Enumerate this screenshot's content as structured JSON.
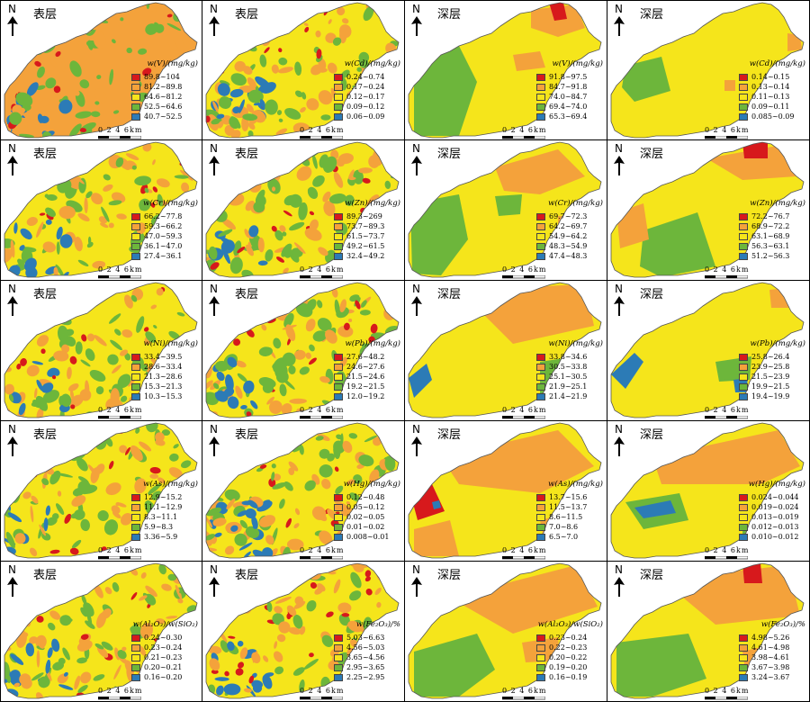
{
  "colors": {
    "c1": "#d7191c",
    "c2": "#f4a23b",
    "c3": "#f5e51b",
    "c4": "#6db63b",
    "c5": "#2c7bb6",
    "outline": "#555555"
  },
  "north_label": "N",
  "scale_text": "0 2 4 6km",
  "panels": [
    {
      "layer": "表层",
      "title": "w(V)/(mg/kg)",
      "dom": "c2",
      "legend": [
        {
          "label": "89.8~104",
          "color": "c1"
        },
        {
          "label": "81.2~89.8",
          "color": "c2"
        },
        {
          "label": "64.6~81.2",
          "color": "c3"
        },
        {
          "label": "52.5~64.6",
          "color": "c4"
        },
        {
          "label": "40.7~52.5",
          "color": "c5"
        }
      ]
    },
    {
      "layer": "表层",
      "title": "w(Cd)/(mg/kg)",
      "dom": "c3",
      "legend": [
        {
          "label": "0.24~0.74",
          "color": "c1"
        },
        {
          "label": "0.17~0.24",
          "color": "c2"
        },
        {
          "label": "0.12~0.17",
          "color": "c3"
        },
        {
          "label": "0.09~0.12",
          "color": "c4"
        },
        {
          "label": "0.06~0.09",
          "color": "c5"
        }
      ]
    },
    {
      "layer": "深层",
      "title": "w(V)/(mg/kg)",
      "dom": "c3",
      "legend": [
        {
          "label": "91.8~97.5",
          "color": "c1"
        },
        {
          "label": "84.7~91.8",
          "color": "c2"
        },
        {
          "label": "74.0~84.7",
          "color": "c3"
        },
        {
          "label": "69.4~74.0",
          "color": "c4"
        },
        {
          "label": "65.3~69.4",
          "color": "c5"
        }
      ]
    },
    {
      "layer": "深层",
      "title": "w(Cd)/(mg/kg)",
      "dom": "c3",
      "legend": [
        {
          "label": "0.14~0.15",
          "color": "c1"
        },
        {
          "label": "0.13~0.14",
          "color": "c2"
        },
        {
          "label": "0.11~0.13",
          "color": "c3"
        },
        {
          "label": "0.09~0.11",
          "color": "c4"
        },
        {
          "label": "0.085~0.09",
          "color": "c5"
        }
      ]
    },
    {
      "layer": "表层",
      "title": "w(Cr)/(mg/kg)",
      "dom": "c3",
      "legend": [
        {
          "label": "66.2~77.8",
          "color": "c1"
        },
        {
          "label": "59.3~66.2",
          "color": "c2"
        },
        {
          "label": "47.0~59.3",
          "color": "c3"
        },
        {
          "label": "36.1~47.0",
          "color": "c4"
        },
        {
          "label": "27.4~36.1",
          "color": "c5"
        }
      ]
    },
    {
      "layer": "表层",
      "title": "w(Zn)/(mg/kg)",
      "dom": "c3",
      "legend": [
        {
          "label": "89.3~269",
          "color": "c1"
        },
        {
          "label": "73.7~89.3",
          "color": "c2"
        },
        {
          "label": "61.5~73.7",
          "color": "c3"
        },
        {
          "label": "49.2~61.5",
          "color": "c4"
        },
        {
          "label": "32.4~49.2",
          "color": "c5"
        }
      ]
    },
    {
      "layer": "深层",
      "title": "w(Cr)/(mg/kg)",
      "dom": "c3",
      "legend": [
        {
          "label": "69.7~72.3",
          "color": "c1"
        },
        {
          "label": "64.2~69.7",
          "color": "c2"
        },
        {
          "label": "54.9~64.2",
          "color": "c3"
        },
        {
          "label": "48.3~54.9",
          "color": "c4"
        },
        {
          "label": "47.4~48.3",
          "color": "c5"
        }
      ]
    },
    {
      "layer": "深层",
      "title": "w(Zn)/(mg/kg)",
      "dom": "c3",
      "legend": [
        {
          "label": "72.2~76.7",
          "color": "c1"
        },
        {
          "label": "68.9~72.2",
          "color": "c2"
        },
        {
          "label": "63.1~68.9",
          "color": "c3"
        },
        {
          "label": "56.3~63.1",
          "color": "c4"
        },
        {
          "label": "51.2~56.3",
          "color": "c5"
        }
      ]
    },
    {
      "layer": "表层",
      "title": "w(Ni)/(mg/kg)",
      "dom": "c3",
      "legend": [
        {
          "label": "33.4~39.5",
          "color": "c1"
        },
        {
          "label": "28.6~33.4",
          "color": "c2"
        },
        {
          "label": "21.3~28.6",
          "color": "c3"
        },
        {
          "label": "15.3~21.3",
          "color": "c4"
        },
        {
          "label": "10.3~15.3",
          "color": "c5"
        }
      ]
    },
    {
      "layer": "表层",
      "title": "w(Pb)/(mg/kg)",
      "dom": "c3",
      "legend": [
        {
          "label": "27.6~48.2",
          "color": "c1"
        },
        {
          "label": "24.6~27.6",
          "color": "c2"
        },
        {
          "label": "21.5~24.6",
          "color": "c3"
        },
        {
          "label": "19.2~21.5",
          "color": "c4"
        },
        {
          "label": "12.0~19.2",
          "color": "c5"
        }
      ]
    },
    {
      "layer": "深层",
      "title": "w(Ni)/(mg/kg)",
      "dom": "c3",
      "legend": [
        {
          "label": "33.8~34.6",
          "color": "c1"
        },
        {
          "label": "30.5~33.8",
          "color": "c2"
        },
        {
          "label": "25.1~30.5",
          "color": "c3"
        },
        {
          "label": "21.9~25.1",
          "color": "c4"
        },
        {
          "label": "21.4~21.9",
          "color": "c5"
        }
      ]
    },
    {
      "layer": "深层",
      "title": "w(Pb)/(mg/kg)",
      "dom": "c3",
      "legend": [
        {
          "label": "25.8~26.4",
          "color": "c1"
        },
        {
          "label": "23.9~25.8",
          "color": "c2"
        },
        {
          "label": "21.5~23.9",
          "color": "c3"
        },
        {
          "label": "19.9~21.5",
          "color": "c4"
        },
        {
          "label": "19.4~19.9",
          "color": "c5"
        }
      ]
    },
    {
      "layer": "表层",
      "title": "w(As)/(mg/kg)",
      "dom": "c3",
      "legend": [
        {
          "label": "12.9~15.2",
          "color": "c1"
        },
        {
          "label": "11.1~12.9",
          "color": "c2"
        },
        {
          "label": "8.3~11.1",
          "color": "c3"
        },
        {
          "label": "5.9~8.3",
          "color": "c4"
        },
        {
          "label": "3.36~5.9",
          "color": "c5"
        }
      ]
    },
    {
      "layer": "表层",
      "title": "w(Hg)/(mg/kg)",
      "dom": "c3",
      "legend": [
        {
          "label": "0.12~0.48",
          "color": "c1"
        },
        {
          "label": "0.05~0.12",
          "color": "c2"
        },
        {
          "label": "0.02~0.05",
          "color": "c3"
        },
        {
          "label": "0.01~0.02",
          "color": "c4"
        },
        {
          "label": "0.008~0.01",
          "color": "c5"
        }
      ]
    },
    {
      "layer": "深层",
      "title": "w(As)/(mg/kg)",
      "dom": "c3",
      "legend": [
        {
          "label": "13.7~15.6",
          "color": "c1"
        },
        {
          "label": "11.5~13.7",
          "color": "c2"
        },
        {
          "label": "8.6~11.5",
          "color": "c3"
        },
        {
          "label": "7.0~8.6",
          "color": "c4"
        },
        {
          "label": "6.5~7.0",
          "color": "c5"
        }
      ]
    },
    {
      "layer": "深层",
      "title": "w(Hg)/(mg/kg)",
      "dom": "c3",
      "legend": [
        {
          "label": "0.024~0.044",
          "color": "c1"
        },
        {
          "label": "0.019~0.024",
          "color": "c2"
        },
        {
          "label": "0.013~0.019",
          "color": "c3"
        },
        {
          "label": "0.012~0.013",
          "color": "c4"
        },
        {
          "label": "0.010~0.012",
          "color": "c5"
        }
      ]
    },
    {
      "layer": "表层",
      "title": "w(Al₂O₃)/w(SiO₂)",
      "dom": "c3",
      "legend": [
        {
          "label": "0.24~0.30",
          "color": "c1"
        },
        {
          "label": "0.23~0.24",
          "color": "c2"
        },
        {
          "label": "0.21~0.23",
          "color": "c3"
        },
        {
          "label": "0.20~0.21",
          "color": "c4"
        },
        {
          "label": "0.16~0.20",
          "color": "c5"
        }
      ]
    },
    {
      "layer": "表层",
      "title": "w(Fe₂O₃)/%",
      "dom": "c3",
      "legend": [
        {
          "label": "5.03~6.63",
          "color": "c1"
        },
        {
          "label": "4.56~5.03",
          "color": "c2"
        },
        {
          "label": "3.65~4.56",
          "color": "c3"
        },
        {
          "label": "2.95~3.65",
          "color": "c4"
        },
        {
          "label": "2.25~2.95",
          "color": "c5"
        }
      ]
    },
    {
      "layer": "深层",
      "title": "w(Al₂O₃)/w(SiO₂)",
      "dom": "c3",
      "legend": [
        {
          "label": "0.23~0.24",
          "color": "c1"
        },
        {
          "label": "0.22~0.23",
          "color": "c2"
        },
        {
          "label": "0.20~0.22",
          "color": "c3"
        },
        {
          "label": "0.19~0.20",
          "color": "c4"
        },
        {
          "label": "0.16~0.19",
          "color": "c5"
        }
      ]
    },
    {
      "layer": "深层",
      "title": "w(Fe₂O₃)/%",
      "dom": "c3",
      "legend": [
        {
          "label": "4.98~5.26",
          "color": "c1"
        },
        {
          "label": "4.61~4.98",
          "color": "c2"
        },
        {
          "label": "3.98~4.61",
          "color": "c3"
        },
        {
          "label": "3.67~3.98",
          "color": "c4"
        },
        {
          "label": "3.24~3.67",
          "color": "c5"
        }
      ]
    }
  ]
}
